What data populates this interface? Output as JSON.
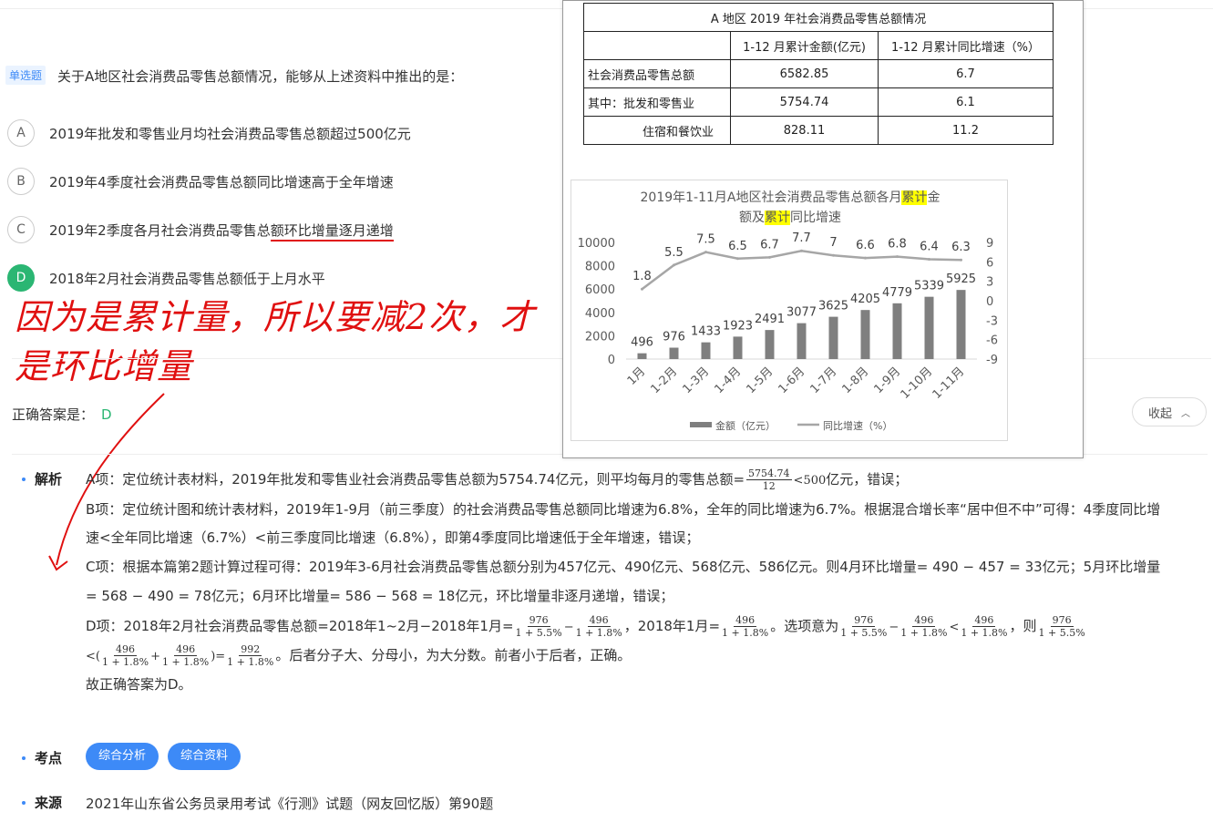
{
  "question": {
    "type_badge": "单选题",
    "text": "关于A地区社会消费品零售总额情况，能够从上述资料中推出的是：",
    "options": [
      {
        "letter": "A",
        "text": "2019年批发和零售业月均社会消费品零售总额超过500亿元"
      },
      {
        "letter": "B",
        "text": "2019年4季度社会消费品零售总额同比增速高于全年增速"
      },
      {
        "letter": "C",
        "text_a": "2019年2季度各月社会消费品零售总",
        "text_b": "额环比增量逐月递增"
      },
      {
        "letter": "D",
        "text": "2018年2月社会消费品零售总额低于上月水平"
      }
    ]
  },
  "handwriting": {
    "line1": "因为是累计量，所以要减2次，才",
    "line2": "是环比增量"
  },
  "answer": {
    "label": "正确答案是：",
    "value": "D",
    "collapse": "收起"
  },
  "analysis": {
    "label": "解析",
    "a": {
      "pre": "A项：定位统计表材料，2019年批发和零售业社会消费品零售总额为5754.74亿元，则平均每月的零售总额=",
      "num": "5754.74",
      "den": "12",
      "mid": "<500",
      "post": "亿元，错误；"
    },
    "b1": "B项：定位统计图和统计表材料，2019年1-9月（前三季度）的社会消费品零售总额同比增速为6.8%，全年的同比增速为6.7%。根据混合增长率“居中但不中”可得：4季度同比增",
    "b2": "速<全年同比增速（6.7%）<前三季度同比增速（6.8%），即第4季度同比增速低于全年增速，错误；",
    "c1": "C项：根据本篇第2题计算过程可得：2019年3-6月社会消费品零售总额分别为457亿元、490亿元、568亿元、586亿元。则4月环比增量= 490 − 457 = 33亿元；5月环比增量",
    "c2": "= 568 − 490 = 78亿元；6月环比增量= 586 − 568 = 18亿元，环比增量非逐月递增，错误；",
    "d_pre": "D项：2018年2月社会消费品零售总额=2018年1~2月−2018年1月=",
    "d_f1n": "976",
    "d_f1d": "1 + 5.5%",
    "d_minus": "−",
    "d_f2n": "496",
    "d_f2d": "1 + 1.8%",
    "d_mid": "，2018年1月=",
    "d_f3n": "496",
    "d_f3d": "1 + 1.8%",
    "d_mid2": "。选项意为",
    "d_f4n": "976",
    "d_f4d": "1 + 5.5%",
    "d_minus2": "−",
    "d_f5n": "496",
    "d_f5d": "1 + 1.8%",
    "d_lt": "<",
    "d_f6n": "496",
    "d_f6d": "1 + 1.8%",
    "d_then": "，则",
    "d_f7n": "976",
    "d_f7d": "1 + 5.5%",
    "d2_lt": "<(",
    "d2_f1n": "496",
    "d2_f1d": "1 + 1.8%",
    "d2_plus": "+",
    "d2_f2n": "496",
    "d2_f2d": "1 + 1.8%",
    "d2_eq": ")=",
    "d2_f3n": "992",
    "d2_f3d": "1 + 1.8%",
    "d2_post": "。后者分子大、分母小，为大分数。前者小于后者，正确。",
    "conclusion": "故正确答案为D。"
  },
  "kaodian": {
    "label": "考点",
    "tags": [
      "综合分析",
      "综合资料"
    ]
  },
  "source": {
    "label": "来源",
    "text": "2021年山东省公务员录用考试《行测》试题（网友回忆版）第90题"
  },
  "table": {
    "title": "A 地区 2019 年社会消费品零售总额情况",
    "col1": "1-12 月累计金额(亿元)",
    "col2": "1-12 月累计同比增速（%）",
    "rows": [
      {
        "label": "社会消费品零售总额",
        "v1": "6582.85",
        "v2": "6.7"
      },
      {
        "label": "其中：批发和零售业",
        "v1": "5754.74",
        "v2": "6.1"
      },
      {
        "label": "住宿和餐饮业",
        "v1": "828.11",
        "v2": "11.2"
      }
    ]
  },
  "chart_data": {
    "type": "bar",
    "title_a": "2019年1-11月A地区社会消费品零售总额各月",
    "title_hl1": "累计",
    "title_b": "金",
    "title_c": "额及",
    "title_hl2": "累计",
    "title_d": "同比增速",
    "categories": [
      "1月",
      "1-2月",
      "1-3月",
      "1-4月",
      "1-5月",
      "1-6月",
      "1-7月",
      "1-8月",
      "1-9月",
      "1-10月",
      "1-11月"
    ],
    "series": [
      {
        "name": "金额（亿元）",
        "type": "bar",
        "axis": "left",
        "values": [
          496,
          976,
          1433,
          1923,
          2491,
          3077,
          3625,
          4205,
          4779,
          5339,
          5925
        ]
      },
      {
        "name": "同比增速（%）",
        "type": "line",
        "axis": "right",
        "values": [
          1.8,
          5.5,
          7.5,
          6.5,
          6.7,
          7.7,
          7,
          6.6,
          6.8,
          6.4,
          6.3
        ]
      }
    ],
    "ylim_left": [
      0,
      10000
    ],
    "yticks_left": [
      "10000",
      "8000",
      "6000",
      "4000",
      "2000",
      "0"
    ],
    "ylim_right": [
      -9,
      9
    ],
    "yticks_right": [
      "9",
      "6",
      "3",
      "0",
      "-3",
      "-6",
      "-9"
    ],
    "legend": "bottom",
    "colors": {
      "bar": "#7f7f7f",
      "line": "#a6a6a6"
    }
  }
}
